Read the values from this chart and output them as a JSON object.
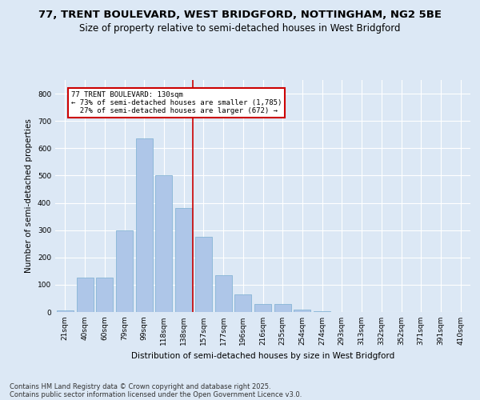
{
  "title1": "77, TRENT BOULEVARD, WEST BRIDGFORD, NOTTINGHAM, NG2 5BE",
  "title2": "Size of property relative to semi-detached houses in West Bridgford",
  "xlabel": "Distribution of semi-detached houses by size in West Bridgford",
  "ylabel": "Number of semi-detached properties",
  "categories": [
    "21sqm",
    "40sqm",
    "60sqm",
    "79sqm",
    "99sqm",
    "118sqm",
    "138sqm",
    "157sqm",
    "177sqm",
    "196sqm",
    "216sqm",
    "235sqm",
    "254sqm",
    "274sqm",
    "293sqm",
    "313sqm",
    "332sqm",
    "352sqm",
    "371sqm",
    "391sqm",
    "410sqm"
  ],
  "values": [
    5,
    125,
    125,
    300,
    635,
    500,
    380,
    275,
    135,
    65,
    30,
    30,
    10,
    2,
    0,
    0,
    0,
    0,
    0,
    0,
    0
  ],
  "bar_color": "#aec6e8",
  "bar_edge_color": "#7aaed0",
  "vline_color": "#cc0000",
  "vline_pos": 6.45,
  "annotation_text": "77 TRENT BOULEVARD: 130sqm\n← 73% of semi-detached houses are smaller (1,785)\n  27% of semi-detached houses are larger (672) →",
  "annotation_box_color": "#cc0000",
  "ylim": [
    0,
    850
  ],
  "yticks": [
    0,
    100,
    200,
    300,
    400,
    500,
    600,
    700,
    800
  ],
  "bg_color": "#dce8f5",
  "plot_bg_color": "#dce8f5",
  "footer1": "Contains HM Land Registry data © Crown copyright and database right 2025.",
  "footer2": "Contains public sector information licensed under the Open Government Licence v3.0.",
  "title_fontsize": 9.5,
  "title2_fontsize": 8.5,
  "axis_label_fontsize": 7.5,
  "tick_fontsize": 6.5,
  "footer_fontsize": 6.0
}
